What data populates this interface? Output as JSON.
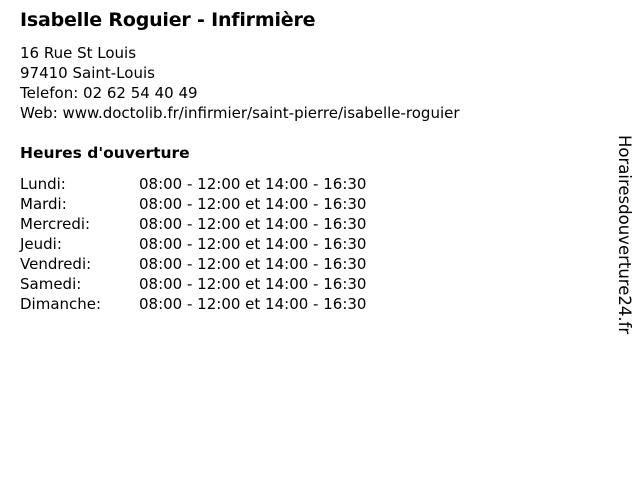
{
  "title": "Isabelle Roguier - Infirmière",
  "address": {
    "street": "16 Rue St Louis",
    "city": "97410 Saint-Louis",
    "phone": "Telefon: 02 62 54 40 49",
    "web": "Web: www.doctolib.fr/infirmier/saint-pierre/isabelle-roguier"
  },
  "hours_heading": "Heures d'ouverture",
  "hours": [
    {
      "day": "Lundi:",
      "time": "08:00 - 12:00 et 14:00 - 16:30"
    },
    {
      "day": "Mardi:",
      "time": "08:00 - 12:00 et 14:00 - 16:30"
    },
    {
      "day": "Mercredi:",
      "time": "08:00 - 12:00 et 14:00 - 16:30"
    },
    {
      "day": "Jeudi:",
      "time": "08:00 - 12:00 et 14:00 - 16:30"
    },
    {
      "day": "Vendredi:",
      "time": "08:00 - 12:00 et 14:00 - 16:30"
    },
    {
      "day": "Samedi:",
      "time": "08:00 - 12:00 et 14:00 - 16:30"
    },
    {
      "day": "Dimanche:",
      "time": "08:00 - 12:00 et 14:00 - 16:30"
    }
  ],
  "watermark": "Horairesdouverture24.fr"
}
